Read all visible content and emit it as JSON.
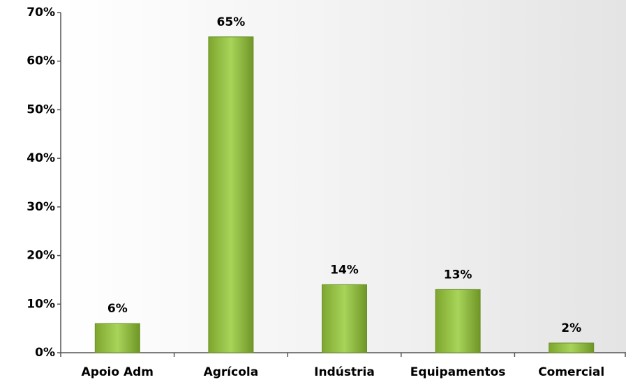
{
  "chart_data": {
    "type": "bar",
    "categories": [
      "Apoio Adm",
      "Agrícola",
      "Indústria",
      "Equipamentos",
      "Comercial"
    ],
    "values": [
      6,
      65,
      14,
      13,
      2
    ],
    "value_labels": [
      "6%",
      "65%",
      "14%",
      "13%",
      "2%"
    ],
    "color": "#9bc94a",
    "ylim": [
      0,
      70
    ],
    "yticks": [
      {
        "value": 0,
        "label": "0%"
      },
      {
        "value": 10,
        "label": "10%"
      },
      {
        "value": 20,
        "label": "20%"
      },
      {
        "value": 30,
        "label": "30%"
      },
      {
        "value": 40,
        "label": "40%"
      },
      {
        "value": 50,
        "label": "50%"
      },
      {
        "value": 60,
        "label": "60%"
      },
      {
        "value": 70,
        "label": "70%"
      }
    ]
  }
}
